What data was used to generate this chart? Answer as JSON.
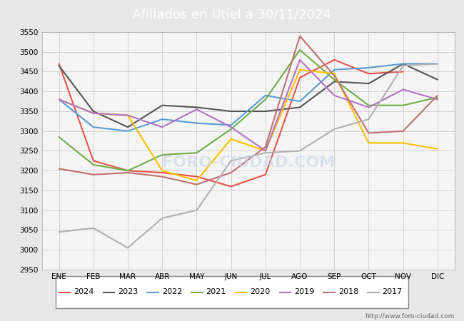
{
  "title": "Afiliados en Utiel a 30/11/2024",
  "title_color": "#ffffff",
  "title_bg_color": "#4d7cc7",
  "watermark_text": "FORO-CIUDAD.COM",
  "watermark_url": "http://www.foro-ciudad.com",
  "x_labels": [
    "ENE",
    "FEB",
    "MAR",
    "ABR",
    "MAY",
    "JUN",
    "JUL",
    "AGO",
    "SEP",
    "OCT",
    "NOV",
    "DIC"
  ],
  "ylim": [
    2950,
    3550
  ],
  "yticks": [
    2950,
    3000,
    3050,
    3100,
    3150,
    3200,
    3250,
    3300,
    3350,
    3400,
    3450,
    3500,
    3550
  ],
  "series": {
    "2024": {
      "color": "#e8534a",
      "dashes": [],
      "data": [
        3470,
        3225,
        3200,
        3195,
        3185,
        3160,
        3190,
        3435,
        3480,
        3445,
        3450,
        null
      ]
    },
    "2023": {
      "color": "#555555",
      "dashes": [
        4,
        2
      ],
      "data": [
        3465,
        3350,
        3310,
        3365,
        3360,
        3350,
        3350,
        3360,
        3425,
        3420,
        3470,
        3430
      ]
    },
    "2022": {
      "color": "#5b9bd5",
      "dashes": [
        4,
        2
      ],
      "data": [
        3380,
        3310,
        3300,
        3330,
        3320,
        3315,
        3390,
        3375,
        3455,
        3460,
        3470,
        3470
      ]
    },
    "2021": {
      "color": "#70ad47",
      "dashes": [
        4,
        2
      ],
      "data": [
        3285,
        3215,
        3200,
        3240,
        3245,
        3305,
        3380,
        3505,
        3430,
        3365,
        3365,
        3385
      ]
    },
    "2020": {
      "color": "#ffc000",
      "dashes": [
        4,
        2
      ],
      "data": [
        3380,
        3345,
        3340,
        3200,
        3175,
        3280,
        3250,
        3455,
        3445,
        3270,
        3270,
        3255
      ]
    },
    "2019": {
      "color": "#b472c4",
      "dashes": [
        4,
        2
      ],
      "data": [
        3380,
        3345,
        3340,
        3310,
        3355,
        3310,
        3250,
        3480,
        3390,
        3360,
        3405,
        3380
      ]
    },
    "2018": {
      "color": "#c07070",
      "dashes": [
        4,
        2
      ],
      "data": [
        3205,
        3190,
        3195,
        3185,
        3165,
        3195,
        3260,
        3540,
        3440,
        3295,
        3300,
        3390
      ]
    },
    "2017": {
      "color": "#b0b0b0",
      "dashes": [
        4,
        2
      ],
      "data": [
        3045,
        3055,
        3005,
        3080,
        3100,
        3225,
        3245,
        3250,
        3305,
        3330,
        3465,
        3470
      ]
    }
  },
  "legend_order": [
    "2024",
    "2023",
    "2022",
    "2021",
    "2020",
    "2019",
    "2018",
    "2017"
  ],
  "background_color": "#e8e8e8",
  "plot_bg_color": "#f5f5f5",
  "grid_color": "#cccccc"
}
